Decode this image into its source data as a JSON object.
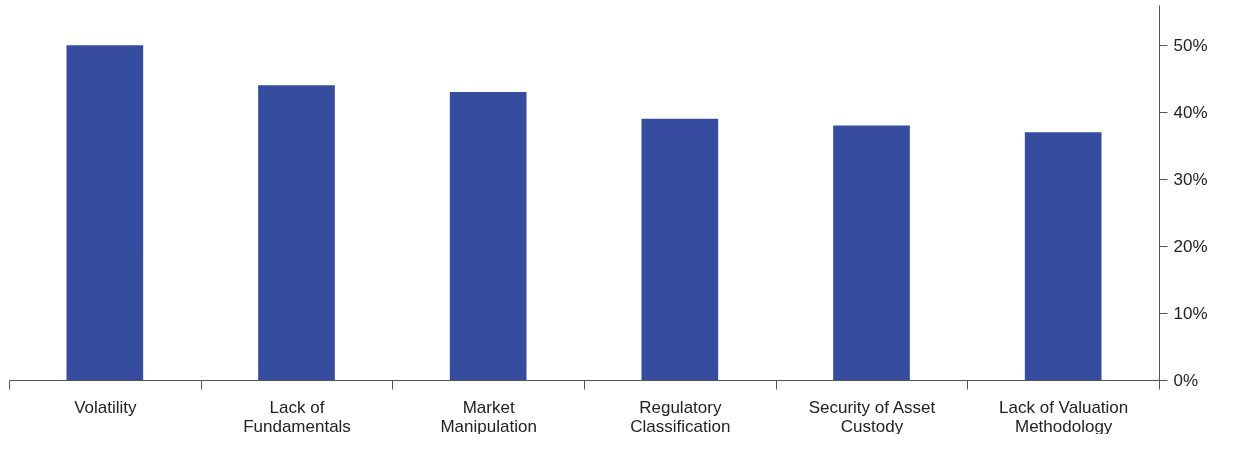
{
  "chart_data": {
    "type": "bar",
    "categories": [
      "Volatility",
      "Lack of Fundamentals",
      "Market Manipulation",
      "Regulatory Classification",
      "Security of Asset Custody",
      "Lack of Valuation Methodology"
    ],
    "values": [
      50,
      44,
      43,
      39,
      38,
      37
    ],
    "color": "#364c9f",
    "ylim": [
      0,
      56
    ],
    "yticks": [
      {
        "value": 0,
        "label": "0%"
      },
      {
        "value": 10,
        "label": "10%"
      },
      {
        "value": 20,
        "label": "20%"
      },
      {
        "value": 30,
        "label": "30%"
      },
      {
        "value": 40,
        "label": "40%"
      },
      {
        "value": 50,
        "label": "50%"
      }
    ],
    "grid": false
  }
}
